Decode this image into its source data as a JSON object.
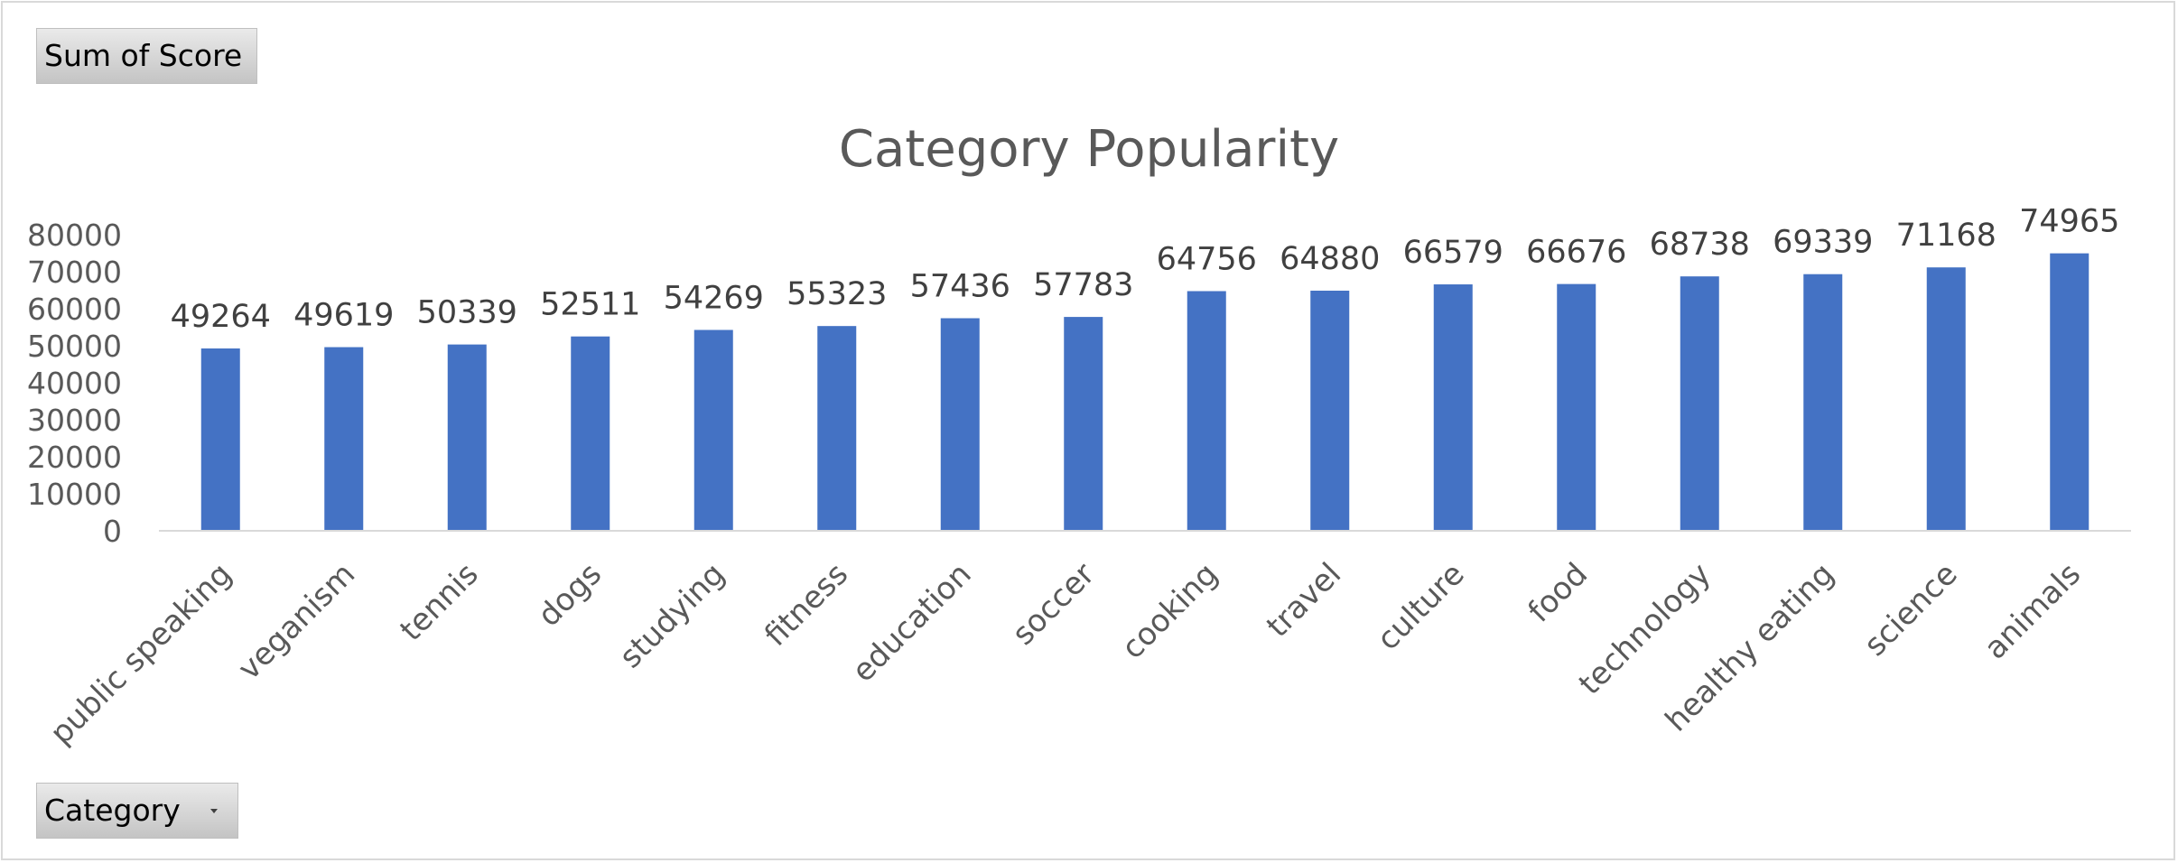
{
  "value_field_button": {
    "label": "Sum of Score"
  },
  "axis_field_button": {
    "label": "Category",
    "icon": "dropdown-arrow-icon"
  },
  "chart_data": {
    "type": "bar",
    "title": "Category Popularity",
    "xlabel": "",
    "ylabel": "",
    "categories": [
      "public speaking",
      "veganism",
      "tennis",
      "dogs",
      "studying",
      "fitness",
      "education",
      "soccer",
      "cooking",
      "travel",
      "culture",
      "food",
      "technology",
      "healthy eating",
      "science",
      "animals"
    ],
    "series": [
      {
        "values": [
          49264,
          49619,
          50339,
          52511,
          54269,
          55323,
          57436,
          57783,
          64756,
          64880,
          66579,
          66676,
          68738,
          69339,
          71168,
          74965
        ]
      }
    ],
    "ylim": [
      0,
      80000
    ],
    "yticks": [
      0,
      10000,
      20000,
      30000,
      40000,
      50000,
      60000,
      70000,
      80000
    ],
    "data_labels": true,
    "grid": false,
    "legend": "none",
    "bar_color": "#4472C4"
  }
}
